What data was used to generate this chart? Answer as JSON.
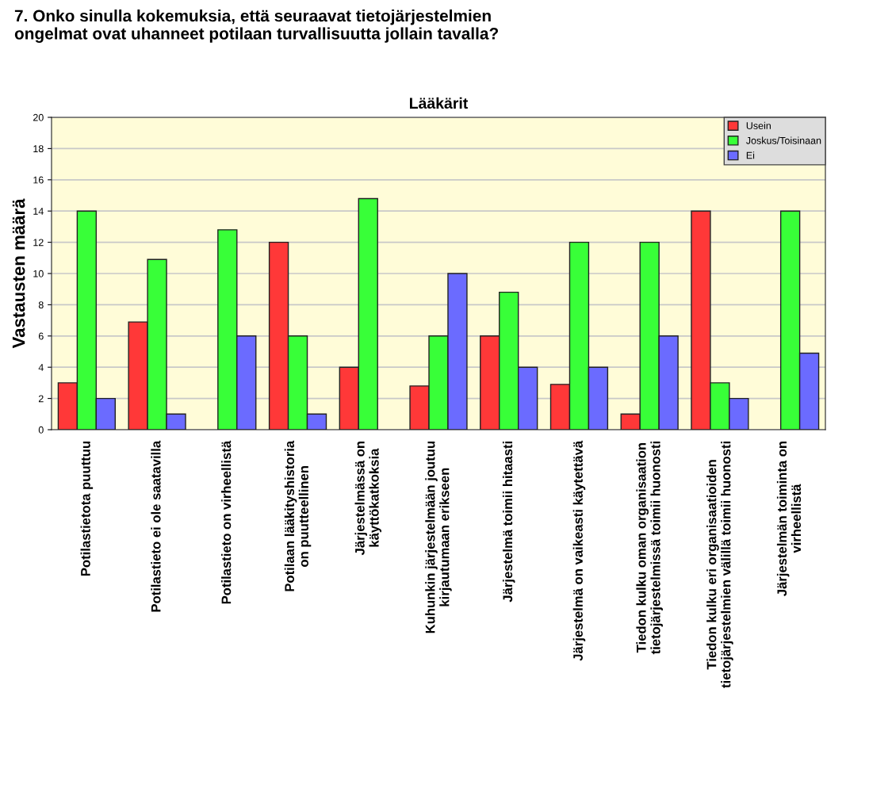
{
  "chart_data": {
    "type": "bar",
    "title": "Lääkärit",
    "subtitle": "7. Onko sinulla kokemuksia, että seuraavat tietojärjestelmien\nongelmat ovat uhanneet potilaan turvallisuutta jollain tavalla?",
    "ylabel": "Vastausten määrä",
    "categories": [
      "Potilastietota puuttuu",
      "Potilastieto ei ole saatavilla",
      "Potilastieto on virheellistä",
      "Potilaan lääkityshistoria\non puutteellinen",
      "Järjestelmässä on\nkäyttökatkoksia",
      "Kuhunkin järjestelmään joutuu\nkirjautumaan erikseen",
      "Järjestelmä toimii hitaasti",
      "Järjestelmä on vaikeasti käytettävä",
      "Tiedon kulku oman organisaation\ntietojärjestelmissä toimii huonosti",
      "Tiedon kulku eri organisaatioiden\ntietojärjestelmien välillä toimii huonosti",
      "Järjestelmän toiminta on\nvirheellistä"
    ],
    "series": [
      {
        "name": "Usein",
        "color": "#ff3838",
        "values": [
          3,
          6.9,
          null,
          12,
          4,
          2.8,
          6,
          2.9,
          1,
          14,
          null
        ]
      },
      {
        "name": "Joskus/Toisinaan",
        "color": "#38ff38",
        "values": [
          14,
          10.9,
          12.8,
          6,
          14.8,
          6,
          8.8,
          12,
          12,
          3,
          14
        ]
      },
      {
        "name": "Ei",
        "color": "#6b6bff",
        "values": [
          2,
          1,
          6,
          1,
          null,
          10,
          4,
          4,
          6,
          2,
          4.9
        ]
      }
    ],
    "ylim": [
      0,
      20
    ],
    "yticks": [
      0,
      2,
      4,
      6,
      8,
      10,
      12,
      14,
      16,
      18,
      20
    ],
    "grid": "y",
    "legend": "top right"
  }
}
